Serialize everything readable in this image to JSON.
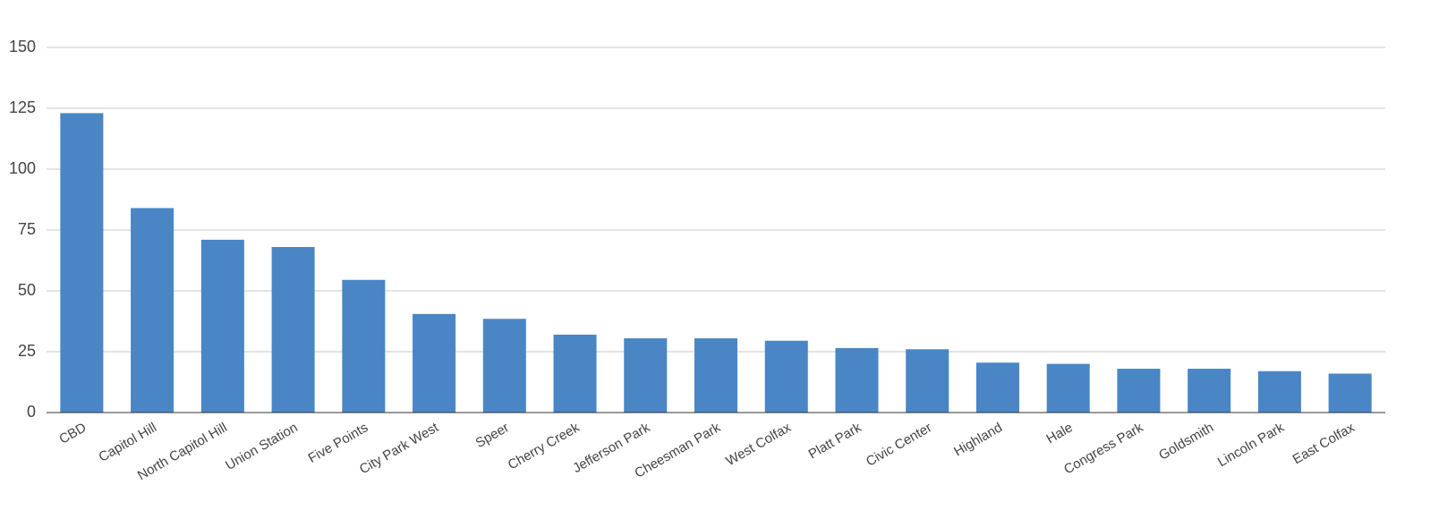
{
  "chart_data": {
    "type": "bar",
    "categories": [
      "CBD",
      "Capitol Hill",
      "North Capitol Hill",
      "Union Station",
      "Five Points",
      "City Park West",
      "Speer",
      "Cherry Creek",
      "Jefferson Park",
      "Cheesman Park",
      "West Colfax",
      "Platt Park",
      "Civic Center",
      "Highland",
      "Hale",
      "Congress Park",
      "Goldsmith",
      "Lincoln Park",
      "East Colfax"
    ],
    "values": [
      123,
      84,
      71,
      68,
      54.5,
      40.5,
      38.5,
      32,
      30.5,
      30.5,
      29.5,
      26.5,
      26,
      20.5,
      20,
      18,
      18,
      17,
      16
    ],
    "color": "#4a86c5",
    "ylim": [
      0,
      150
    ],
    "yticks": [
      0,
      25,
      50,
      75,
      100,
      125,
      150
    ],
    "grid": true
  }
}
